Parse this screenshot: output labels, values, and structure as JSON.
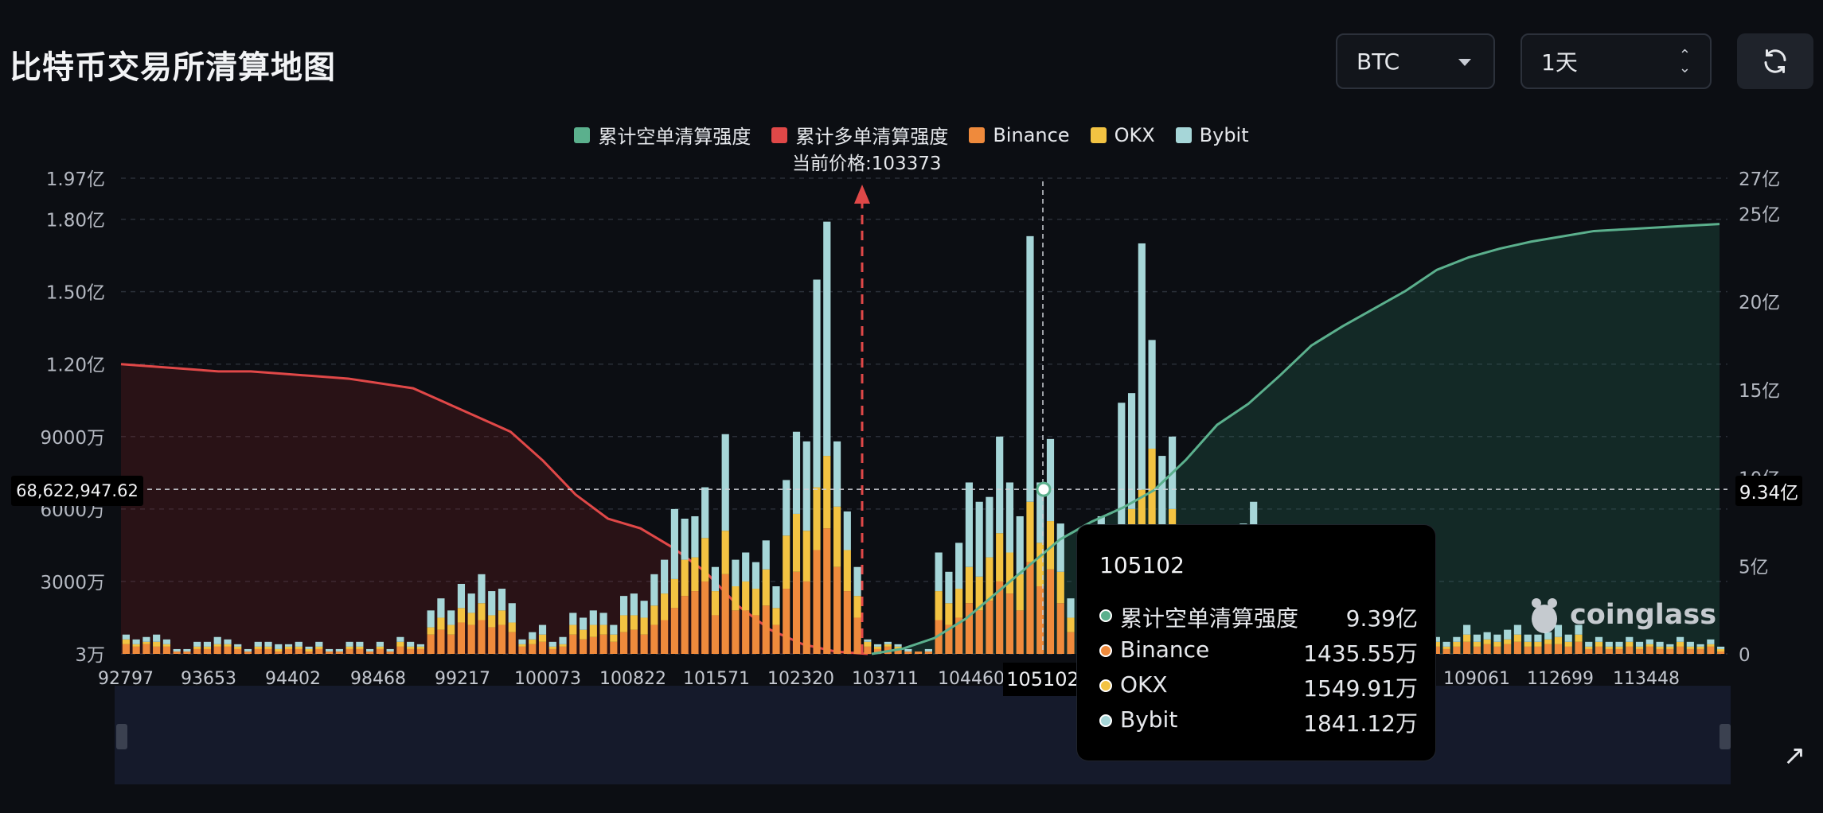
{
  "page": {
    "title": "比特币交易所清算地图",
    "symbol_select": "BTC",
    "range_select": "1天",
    "refresh_icon": "refresh-icon"
  },
  "chart_data": {
    "type": "bar",
    "legend": [
      {
        "name": "累计空单清算强度",
        "color": "#5bb08d"
      },
      {
        "name": "累计多单清算强度",
        "color": "#e04848"
      },
      {
        "name": "Binance",
        "color": "#ef8a3c"
      },
      {
        "name": "OKX",
        "color": "#f3c342"
      },
      {
        "name": "Bybit",
        "color": "#a6d6d8"
      }
    ],
    "current_price_label": "当前价格:103373",
    "current_price": 103373,
    "x_tick_labels": [
      "92797",
      "93653",
      "94402",
      "98468",
      "99217",
      "100073",
      "100822",
      "101571",
      "102320",
      "103711",
      "104460",
      "105102",
      "109061",
      "112699",
      "113448"
    ],
    "y_left": {
      "ticks": [
        "3万",
        "3000万",
        "6000万",
        "9000万",
        "1.20亿",
        "1.50亿",
        "1.80亿",
        "1.97亿"
      ],
      "tick_values": [
        0.003,
        30,
        60,
        90,
        120,
        150,
        180,
        197
      ],
      "unit": "万"
    },
    "y_right": {
      "ticks": [
        "0",
        "5亿",
        "10亿",
        "15亿",
        "20亿",
        "25亿",
        "27亿"
      ],
      "tick_values": [
        0,
        5,
        10,
        15,
        20,
        25,
        27
      ],
      "unit": "亿"
    },
    "grid": true,
    "bars_unit": "百万",
    "bars": [
      {
        "binance": 4,
        "okx": 2,
        "bybit": 2
      },
      {
        "binance": 3,
        "okx": 1,
        "bybit": 2
      },
      {
        "binance": 4,
        "okx": 1,
        "bybit": 2
      },
      {
        "binance": 3,
        "okx": 2,
        "bybit": 3
      },
      {
        "binance": 3,
        "okx": 1,
        "bybit": 2
      },
      {
        "binance": 1,
        "okx": 0,
        "bybit": 1
      },
      {
        "binance": 1,
        "okx": 0,
        "bybit": 1
      },
      {
        "binance": 2,
        "okx": 1,
        "bybit": 2
      },
      {
        "binance": 2,
        "okx": 1,
        "bybit": 2
      },
      {
        "binance": 3,
        "okx": 1,
        "bybit": 3
      },
      {
        "binance": 3,
        "okx": 1,
        "bybit": 2
      },
      {
        "binance": 2,
        "okx": 1,
        "bybit": 1
      },
      {
        "binance": 1,
        "okx": 0,
        "bybit": 1
      },
      {
        "binance": 2,
        "okx": 1,
        "bybit": 2
      },
      {
        "binance": 2,
        "okx": 1,
        "bybit": 2
      },
      {
        "binance": 1,
        "okx": 1,
        "bybit": 2
      },
      {
        "binance": 2,
        "okx": 1,
        "bybit": 1
      },
      {
        "binance": 2,
        "okx": 1,
        "bybit": 2
      },
      {
        "binance": 1,
        "okx": 1,
        "bybit": 1
      },
      {
        "binance": 2,
        "okx": 1,
        "bybit": 2
      },
      {
        "binance": 1,
        "okx": 0,
        "bybit": 1
      },
      {
        "binance": 1,
        "okx": 0,
        "bybit": 1
      },
      {
        "binance": 2,
        "okx": 1,
        "bybit": 2
      },
      {
        "binance": 2,
        "okx": 1,
        "bybit": 2
      },
      {
        "binance": 1,
        "okx": 0,
        "bybit": 1
      },
      {
        "binance": 2,
        "okx": 1,
        "bybit": 2
      },
      {
        "binance": 1,
        "okx": 0,
        "bybit": 1
      },
      {
        "binance": 3,
        "okx": 2,
        "bybit": 2
      },
      {
        "binance": 2,
        "okx": 1,
        "bybit": 2
      },
      {
        "binance": 2,
        "okx": 1,
        "bybit": 1
      },
      {
        "binance": 8,
        "okx": 3,
        "bybit": 7
      },
      {
        "binance": 10,
        "okx": 5,
        "bybit": 8
      },
      {
        "binance": 8,
        "okx": 4,
        "bybit": 6
      },
      {
        "binance": 13,
        "okx": 6,
        "bybit": 10
      },
      {
        "binance": 12,
        "okx": 5,
        "bybit": 8
      },
      {
        "binance": 14,
        "okx": 7,
        "bybit": 12
      },
      {
        "binance": 11,
        "okx": 5,
        "bybit": 10
      },
      {
        "binance": 12,
        "okx": 6,
        "bybit": 9
      },
      {
        "binance": 9,
        "okx": 4,
        "bybit": 8
      },
      {
        "binance": 3,
        "okx": 1,
        "bybit": 2
      },
      {
        "binance": 4,
        "okx": 2,
        "bybit": 3
      },
      {
        "binance": 5,
        "okx": 3,
        "bybit": 4
      },
      {
        "binance": 2,
        "okx": 1,
        "bybit": 2
      },
      {
        "binance": 3,
        "okx": 1,
        "bybit": 3
      },
      {
        "binance": 8,
        "okx": 4,
        "bybit": 5
      },
      {
        "binance": 6,
        "okx": 4,
        "bybit": 5
      },
      {
        "binance": 7,
        "okx": 5,
        "bybit": 6
      },
      {
        "binance": 8,
        "okx": 4,
        "bybit": 5
      },
      {
        "binance": 5,
        "okx": 3,
        "bybit": 4
      },
      {
        "binance": 9,
        "okx": 7,
        "bybit": 8
      },
      {
        "binance": 10,
        "okx": 6,
        "bybit": 9
      },
      {
        "binance": 8,
        "okx": 7,
        "bybit": 7
      },
      {
        "binance": 12,
        "okx": 8,
        "bybit": 13
      },
      {
        "binance": 14,
        "okx": 11,
        "bybit": 14
      },
      {
        "binance": 19,
        "okx": 12,
        "bybit": 29
      },
      {
        "binance": 24,
        "okx": 15,
        "bybit": 17
      },
      {
        "binance": 26,
        "okx": 14,
        "bybit": 17
      },
      {
        "binance": 30,
        "okx": 18,
        "bybit": 21
      },
      {
        "binance": 16,
        "okx": 10,
        "bybit": 10
      },
      {
        "binance": 33,
        "okx": 18,
        "bybit": 40
      },
      {
        "binance": 18,
        "okx": 10,
        "bybit": 11
      },
      {
        "binance": 18,
        "okx": 12,
        "bybit": 12
      },
      {
        "binance": 16,
        "okx": 11,
        "bybit": 11
      },
      {
        "binance": 20,
        "okx": 15,
        "bybit": 12
      },
      {
        "binance": 12,
        "okx": 7,
        "bybit": 9
      },
      {
        "binance": 27,
        "okx": 22,
        "bybit": 23
      },
      {
        "binance": 34,
        "okx": 24,
        "bybit": 34
      },
      {
        "binance": 30,
        "okx": 21,
        "bybit": 37
      },
      {
        "binance": 43,
        "okx": 26,
        "bybit": 86
      },
      {
        "binance": 52,
        "okx": 30,
        "bybit": 97
      },
      {
        "binance": 36,
        "okx": 25,
        "bybit": 27
      },
      {
        "binance": 26,
        "okx": 17,
        "bybit": 16
      },
      {
        "binance": 15,
        "okx": 9,
        "bybit": 12
      },
      {
        "binance": 3,
        "okx": 2,
        "bybit": 1
      },
      {
        "binance": 2,
        "okx": 1,
        "bybit": 1
      },
      {
        "binance": 3,
        "okx": 1,
        "bybit": 1
      },
      {
        "binance": 2,
        "okx": 1,
        "bybit": 1
      },
      {
        "binance": 1,
        "okx": 0,
        "bybit": 1
      },
      {
        "binance": 1,
        "okx": 0,
        "bybit": 0
      },
      {
        "binance": 1,
        "okx": 0,
        "bybit": 1
      },
      {
        "binance": 14,
        "okx": 12,
        "bybit": 16
      },
      {
        "binance": 12,
        "okx": 9,
        "bybit": 13
      },
      {
        "binance": 15,
        "okx": 12,
        "bybit": 19
      },
      {
        "binance": 21,
        "okx": 15,
        "bybit": 35
      },
      {
        "binance": 18,
        "okx": 14,
        "bybit": 31
      },
      {
        "binance": 22,
        "okx": 18,
        "bybit": 25
      },
      {
        "binance": 30,
        "okx": 20,
        "bybit": 40
      },
      {
        "binance": 25,
        "okx": 17,
        "bybit": 29
      },
      {
        "binance": 18,
        "okx": 15,
        "bybit": 24
      },
      {
        "binance": 38,
        "okx": 25,
        "bybit": 110
      },
      {
        "binance": 28,
        "okx": 18,
        "bybit": 25
      },
      {
        "binance": 35,
        "okx": 20,
        "bybit": 34
      },
      {
        "binance": 21,
        "okx": 13,
        "bybit": 20
      },
      {
        "binance": 9,
        "okx": 6,
        "bybit": 8
      },
      {
        "binance": 6,
        "okx": 4,
        "bybit": 6
      },
      {
        "binance": 14,
        "okx": 9,
        "bybit": 11
      },
      {
        "binance": 22,
        "okx": 15,
        "bybit": 20
      },
      {
        "binance": 19,
        "okx": 12,
        "bybit": 19
      },
      {
        "binance": 29,
        "okx": 20,
        "bybit": 55
      },
      {
        "binance": 35,
        "okx": 25,
        "bybit": 48
      },
      {
        "binance": 40,
        "okx": 28,
        "bybit": 102
      },
      {
        "binance": 50,
        "okx": 35,
        "bybit": 45
      },
      {
        "binance": 30,
        "okx": 22,
        "bybit": 30
      },
      {
        "binance": 34,
        "okx": 26,
        "bybit": 30
      },
      {
        "binance": 3,
        "okx": 2,
        "bybit": 2
      },
      {
        "binance": 2,
        "okx": 1,
        "bybit": 2
      },
      {
        "binance": 3,
        "okx": 2,
        "bybit": 2
      },
      {
        "binance": 2,
        "okx": 1,
        "bybit": 2
      },
      {
        "binance": 3,
        "okx": 2,
        "bybit": 2
      },
      {
        "binance": 2,
        "okx": 1,
        "bybit": 2
      },
      {
        "binance": 18,
        "okx": 12,
        "bybit": 24
      },
      {
        "binance": 20,
        "okx": 15,
        "bybit": 28
      },
      {
        "binance": 18,
        "okx": 12,
        "bybit": 22
      },
      {
        "binance": 15,
        "okx": 10,
        "bybit": 16
      },
      {
        "binance": 3,
        "okx": 2,
        "bybit": 2
      },
      {
        "binance": 2,
        "okx": 1,
        "bybit": 2
      },
      {
        "binance": 10,
        "okx": 7,
        "bybit": 10
      },
      {
        "binance": 3,
        "okx": 2,
        "bybit": 2
      },
      {
        "binance": 2,
        "okx": 1,
        "bybit": 2
      },
      {
        "binance": 3,
        "okx": 2,
        "bybit": 2
      },
      {
        "binance": 4,
        "okx": 2,
        "bybit": 3
      },
      {
        "binance": 3,
        "okx": 2,
        "bybit": 2
      },
      {
        "binance": 14,
        "okx": 9,
        "bybit": 10
      },
      {
        "binance": 2,
        "okx": 1,
        "bybit": 2
      },
      {
        "binance": 3,
        "okx": 2,
        "bybit": 2
      },
      {
        "binance": 3,
        "okx": 2,
        "bybit": 2
      },
      {
        "binance": 2,
        "okx": 1,
        "bybit": 2
      },
      {
        "binance": 3,
        "okx": 2,
        "bybit": 2
      },
      {
        "binance": 2,
        "okx": 1,
        "bybit": 2
      },
      {
        "binance": 3,
        "okx": 2,
        "bybit": 2
      },
      {
        "binance": 2,
        "okx": 1,
        "bybit": 2
      },
      {
        "binance": 3,
        "okx": 2,
        "bybit": 2
      },
      {
        "binance": 5,
        "okx": 3,
        "bybit": 4
      },
      {
        "binance": 3,
        "okx": 2,
        "bybit": 3
      },
      {
        "binance": 4,
        "okx": 2,
        "bybit": 3
      },
      {
        "binance": 3,
        "okx": 2,
        "bybit": 3
      },
      {
        "binance": 4,
        "okx": 2,
        "bybit": 4
      },
      {
        "binance": 5,
        "okx": 3,
        "bybit": 4
      },
      {
        "binance": 3,
        "okx": 2,
        "bybit": 3
      },
      {
        "binance": 3,
        "okx": 2,
        "bybit": 3
      },
      {
        "binance": 4,
        "okx": 2,
        "bybit": 3
      },
      {
        "binance": 4,
        "okx": 3,
        "bybit": 5
      },
      {
        "binance": 3,
        "okx": 2,
        "bybit": 3
      },
      {
        "binance": 5,
        "okx": 3,
        "bybit": 4
      },
      {
        "binance": 2,
        "okx": 1,
        "bybit": 2
      },
      {
        "binance": 3,
        "okx": 2,
        "bybit": 2
      },
      {
        "binance": 2,
        "okx": 1,
        "bybit": 2
      },
      {
        "binance": 2,
        "okx": 1,
        "bybit": 2
      },
      {
        "binance": 3,
        "okx": 2,
        "bybit": 2
      },
      {
        "binance": 2,
        "okx": 1,
        "bybit": 2
      },
      {
        "binance": 3,
        "okx": 1,
        "bybit": 2
      },
      {
        "binance": 2,
        "okx": 1,
        "bybit": 2
      },
      {
        "binance": 2,
        "okx": 1,
        "bybit": 1
      },
      {
        "binance": 3,
        "okx": 2,
        "bybit": 2
      },
      {
        "binance": 2,
        "okx": 1,
        "bybit": 2
      },
      {
        "binance": 2,
        "okx": 1,
        "bybit": 1
      },
      {
        "binance": 3,
        "okx": 1,
        "bybit": 2
      },
      {
        "binance": 1,
        "okx": 1,
        "bybit": 1
      }
    ],
    "long_cumulative_series_note": "累计多单清算强度",
    "long_cumulative_yi": [
      1.2,
      1.19,
      1.18,
      1.17,
      1.17,
      1.16,
      1.15,
      1.14,
      1.12,
      1.1,
      1.04,
      0.98,
      0.92,
      0.8,
      0.66,
      0.56,
      0.52,
      0.44,
      0.34,
      0.2,
      0.1,
      0.04,
      0.01,
      0.0
    ],
    "short_cumulative_yi": [
      0.0,
      0.3,
      0.9,
      2.0,
      3.5,
      5.0,
      6.5,
      7.5,
      8.3,
      9.3,
      11.0,
      13.0,
      14.2,
      15.8,
      17.5,
      18.6,
      19.6,
      20.6,
      21.8,
      22.5,
      23.0,
      23.4,
      23.7,
      24.0,
      24.1,
      24.2,
      24.3,
      24.4
    ],
    "crosshair": {
      "x_label": "105102",
      "y_left_label": "68,622,947.62",
      "y_right_label": "9.34亿"
    },
    "tooltip": {
      "title": "105102",
      "rows": [
        {
          "label": "累计空单清算强度",
          "value": "9.39亿",
          "color": "#5bb08d"
        },
        {
          "label": "Binance",
          "value": "1435.55万",
          "color": "#ef8a3c"
        },
        {
          "label": "OKX",
          "value": "1549.91万",
          "color": "#f3c342"
        },
        {
          "label": "Bybit",
          "value": "1841.12万",
          "color": "#a6d6d8"
        }
      ]
    },
    "watermark": "coinglass"
  }
}
